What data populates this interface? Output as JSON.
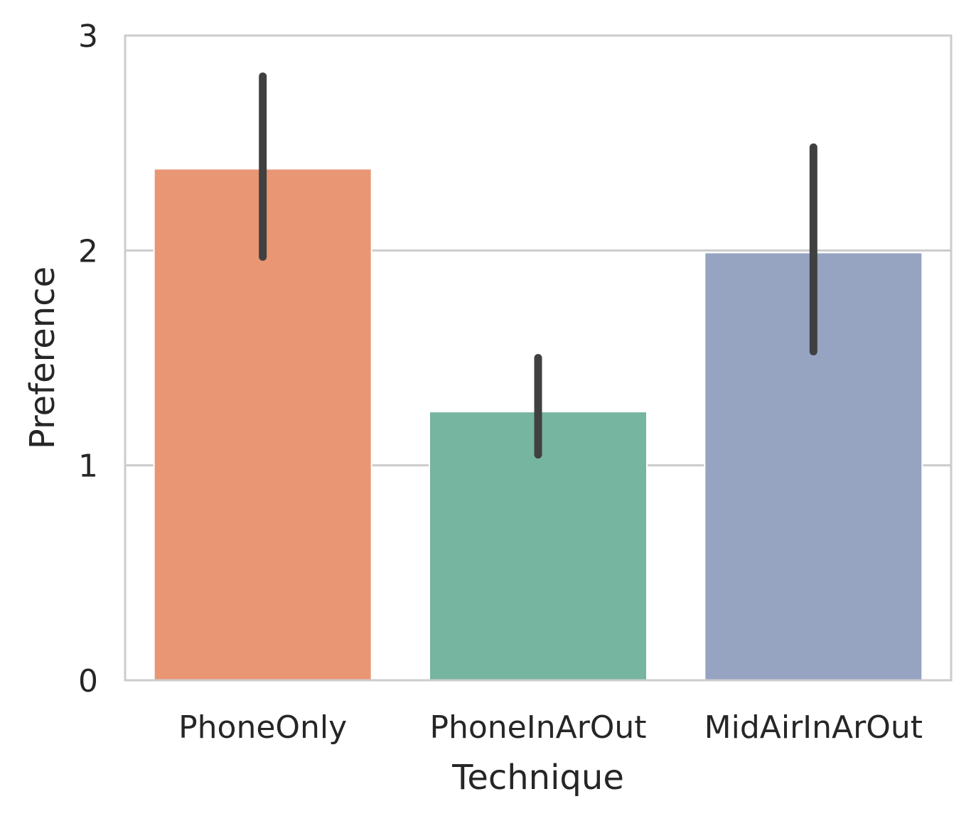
{
  "chart_data": {
    "type": "bar",
    "title": "",
    "xlabel": "Technique",
    "ylabel": "Preference",
    "categories": [
      "PhoneOnly",
      "PhoneInArOut",
      "MidAirInArOut"
    ],
    "values": [
      2.38,
      1.25,
      1.99
    ],
    "error_low": [
      1.97,
      1.05,
      1.53
    ],
    "error_high": [
      2.81,
      1.5,
      2.48
    ],
    "colors": [
      "#e99675",
      "#76b5a0",
      "#96a4c2"
    ],
    "error_color": "#404040",
    "ylim": [
      0,
      3
    ],
    "yticks": [
      0,
      1,
      2,
      3
    ],
    "ytick_labels": [
      "0",
      "1",
      "2",
      "3"
    ],
    "grid": true
  }
}
